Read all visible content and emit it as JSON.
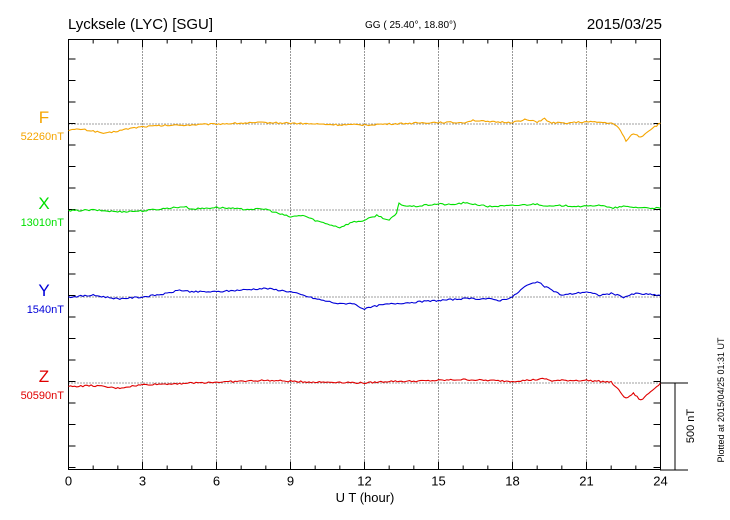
{
  "chart_data": {
    "type": "line",
    "header": {
      "station": "Lycksele (LYC)  [SGU]",
      "coords": "GG ( 25.40°,  18.80°)",
      "date": "2015/03/25"
    },
    "xlabel": "U T (hour)",
    "xlim": [
      0,
      24
    ],
    "xticks": [
      0,
      3,
      6,
      9,
      12,
      15,
      18,
      21,
      24
    ],
    "scale_label": "500 nT",
    "scale_nT": 500,
    "plot_note": "Plotted at 2015/04/25 01:31  UT",
    "grid": "dotted vertical lines every 3 hours; dotted baseline per component",
    "series": [
      {
        "name": "F",
        "baseline": "52260nT",
        "color": "#f5a500",
        "x": [
          0,
          0.5,
          1,
          1.5,
          2,
          2.5,
          3,
          4,
          5,
          6,
          7,
          8,
          9,
          10,
          11,
          12,
          13,
          14,
          15,
          16,
          16.4,
          17,
          18,
          18.5,
          19,
          19.3,
          19.5,
          20,
          21,
          21.5,
          22,
          22.3,
          22.6,
          22.9,
          23.2,
          23.6,
          24
        ],
        "values": [
          -35,
          -30,
          -40,
          -55,
          -40,
          -25,
          -15,
          -8,
          -5,
          0,
          5,
          8,
          5,
          0,
          -5,
          -5,
          0,
          5,
          10,
          8,
          22,
          12,
          10,
          25,
          12,
          30,
          8,
          5,
          12,
          10,
          5,
          -20,
          -95,
          -55,
          -75,
          -30,
          5
        ]
      },
      {
        "name": "X",
        "baseline": "13010nT",
        "color": "#00e000",
        "x": [
          0,
          1,
          2,
          3,
          4,
          4.7,
          5,
          6,
          7,
          8,
          8.5,
          9,
          9.5,
          10,
          10.5,
          11,
          11.5,
          12,
          12.5,
          13,
          13.3,
          13.4,
          13.6,
          14,
          15,
          15.5,
          16,
          16.4,
          17,
          18,
          19,
          19.5,
          20,
          21,
          21.5,
          22,
          22.5,
          23,
          24
        ],
        "values": [
          -5,
          0,
          -10,
          -5,
          10,
          20,
          5,
          15,
          5,
          5,
          -20,
          -40,
          -30,
          -60,
          -80,
          -100,
          -70,
          -60,
          -30,
          -60,
          -20,
          40,
          25,
          20,
          35,
          30,
          40,
          35,
          20,
          25,
          35,
          20,
          25,
          20,
          30,
          10,
          20,
          15,
          10
        ]
      },
      {
        "name": "Y",
        "baseline": "1540nT",
        "color": "#0000d8",
        "x": [
          0,
          1,
          2,
          3,
          4,
          4.5,
          5,
          6,
          7,
          8,
          9,
          10,
          11,
          11.5,
          12,
          12.5,
          13,
          14,
          15,
          16,
          17,
          17.5,
          18,
          18.5,
          19,
          19.3,
          19.6,
          20,
          21,
          21.5,
          22,
          22.5,
          23,
          24
        ],
        "values": [
          0,
          10,
          -10,
          0,
          20,
          40,
          30,
          30,
          40,
          50,
          30,
          -10,
          -40,
          -35,
          -70,
          -50,
          -40,
          -30,
          -20,
          -10,
          -10,
          -20,
          0,
          60,
          90,
          60,
          40,
          10,
          30,
          10,
          20,
          0,
          20,
          10
        ]
      },
      {
        "name": "Z",
        "baseline": "50590nT",
        "color": "#e00000",
        "x": [
          0,
          1,
          2,
          3,
          4,
          5,
          6,
          7,
          8,
          9,
          10,
          11,
          12,
          13,
          14,
          15,
          16,
          17,
          18,
          19,
          19.3,
          19.6,
          20,
          21,
          21.5,
          22,
          22.3,
          22.6,
          22.9,
          23.2,
          23.6,
          24
        ],
        "values": [
          -20,
          -15,
          -30,
          -10,
          -5,
          0,
          5,
          10,
          15,
          10,
          5,
          5,
          0,
          10,
          10,
          15,
          20,
          15,
          10,
          20,
          25,
          12,
          15,
          15,
          10,
          5,
          -40,
          -90,
          -60,
          -100,
          -50,
          0
        ]
      }
    ]
  }
}
